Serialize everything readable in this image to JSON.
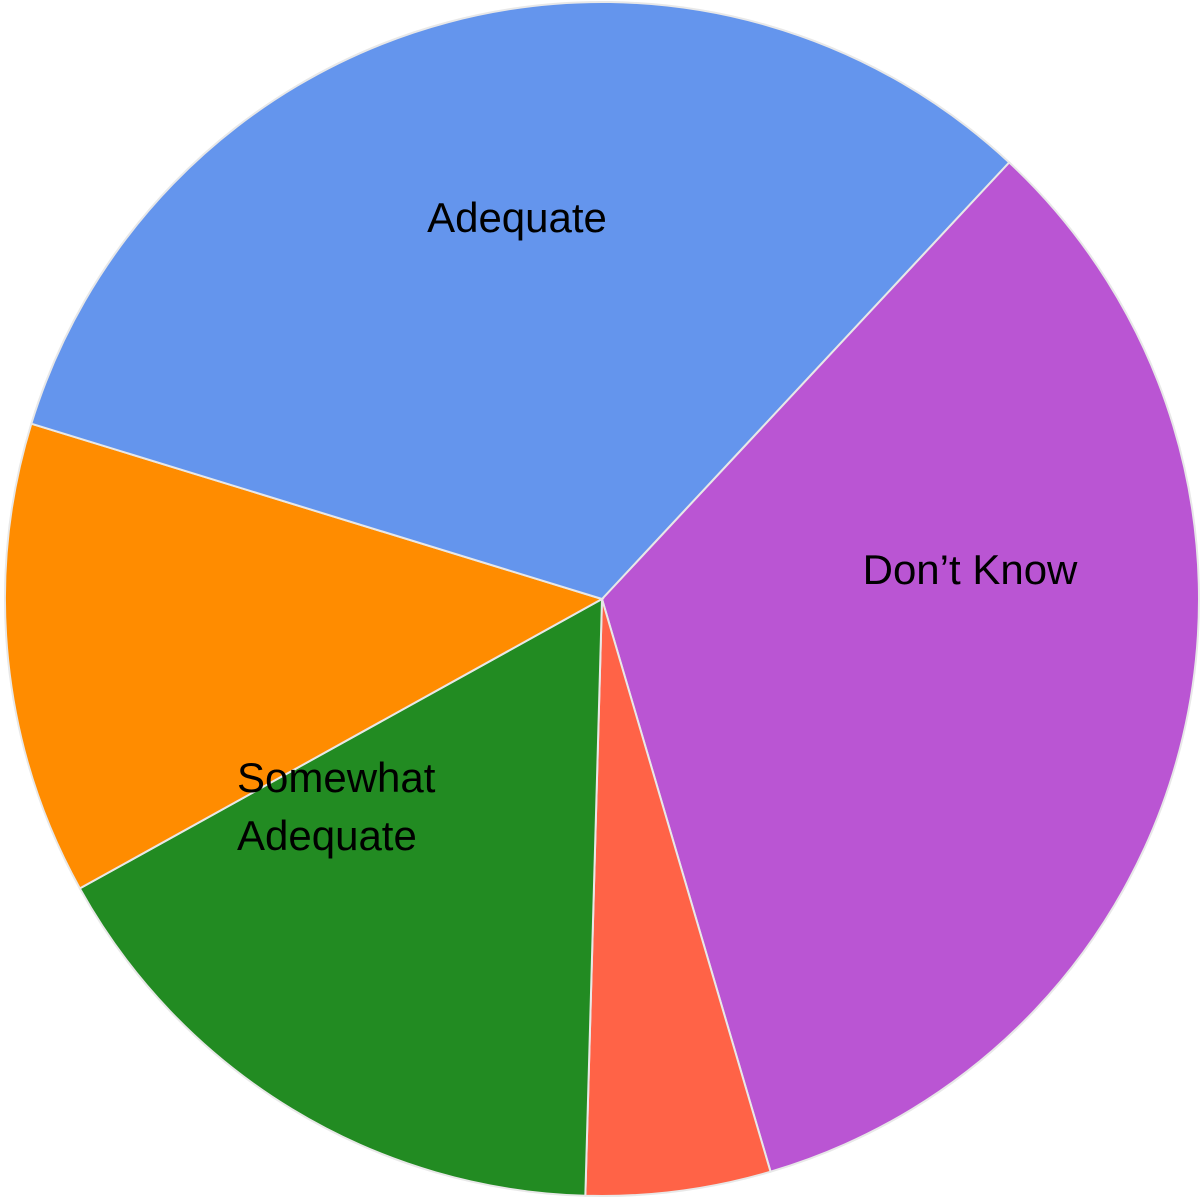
{
  "chart_data": {
    "type": "pie",
    "slices": [
      {
        "label": "Adequate",
        "value": 33.5,
        "color": "#ba55d3"
      },
      {
        "label": "",
        "value": 5.0,
        "color": "#ff6347"
      },
      {
        "label": "Don’t Know",
        "value": 16.5,
        "color": "#228b22"
      },
      {
        "label": "",
        "value": 12.8,
        "color": "#ff8c00"
      },
      {
        "label": "Somewhat Adequate",
        "label_lines": [
          "Somewhat",
          "Adequate"
        ],
        "value": 32.2,
        "color": "#6495ed"
      }
    ]
  }
}
